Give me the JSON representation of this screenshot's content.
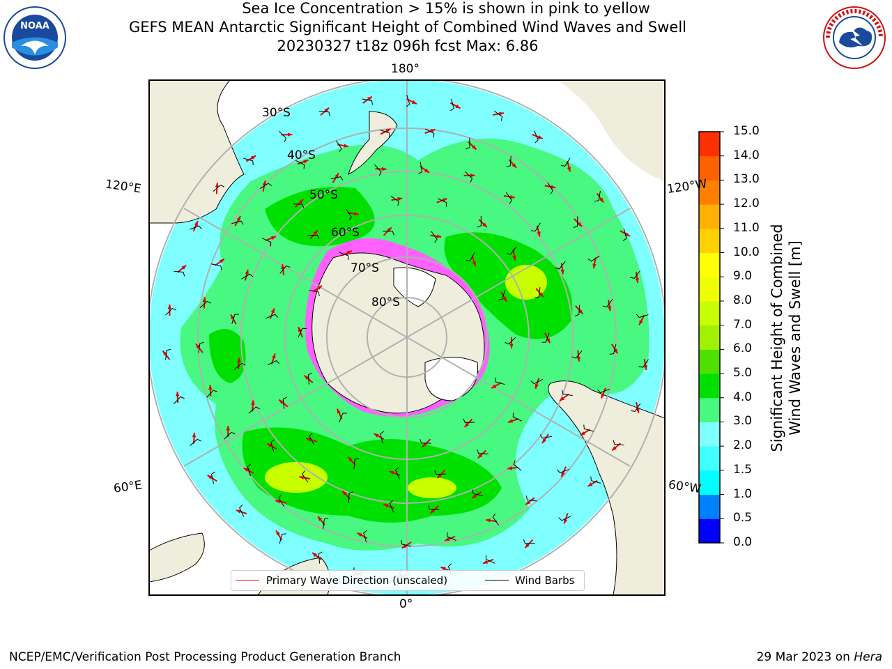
{
  "title": {
    "line1": "GEFS MEAN Antarctic Significant Height of Combined Wind Waves and Swell",
    "line2": "20230327 t18z 096h fcst   Max: 6.86"
  },
  "logos": {
    "left": "noaa-logo",
    "right": "nws-logo"
  },
  "map": {
    "projection": "south-polar-stereographic",
    "lon_labels": {
      "top": "180°",
      "bottom": "0°",
      "left_upper": "120°E",
      "left_lower": "60°E",
      "right_upper": "120°W",
      "right_lower": "60°W"
    },
    "lat_labels": [
      "30°S",
      "40°S",
      "50°S",
      "60°S",
      "70°S",
      "80°S"
    ],
    "colors": {
      "ocean_low": "#7fffff",
      "ocean_mid": "#48f880",
      "ocean_high": "#00e000",
      "peak": "#c8ff00",
      "land": "#efeedc",
      "ice": "#ff60ff"
    }
  },
  "legend": {
    "primary_wave": "Primary Wave Direction (unscaled)",
    "wind_barbs": "Wind Barbs",
    "primary_color": "#ff0000",
    "barb_color": "#000000"
  },
  "colorbar": {
    "label_line1": "Significant Height of Combined",
    "label_line2": "Wind Waves and Swell [m]",
    "ticks": [
      "15.0",
      "14.0",
      "13.0",
      "12.0",
      "11.0",
      "10.0",
      "9.0",
      "8.0",
      "7.0",
      "6.0",
      "5.0",
      "4.0",
      "3.0",
      "2.0",
      "1.5",
      "1.0",
      "0.5",
      "0.0"
    ],
    "colors": [
      "#0000ff",
      "#0080ff",
      "#00ffff",
      "#40ffff",
      "#7fffff",
      "#48f880",
      "#00e000",
      "#50e000",
      "#a0f000",
      "#c8ff00",
      "#f0ff00",
      "#ffff00",
      "#ffd000",
      "#ffb000",
      "#ff8000",
      "#ff6000",
      "#ff3000"
    ]
  },
  "captions": {
    "sea_ice": "Sea Ice Concentration > 15% is shown in pink to yellow",
    "footer_left": "NCEP/EMC/Verification Post Processing Product Generation Branch",
    "footer_date": "29 Mar 2023 on",
    "footer_host": "Hera"
  }
}
